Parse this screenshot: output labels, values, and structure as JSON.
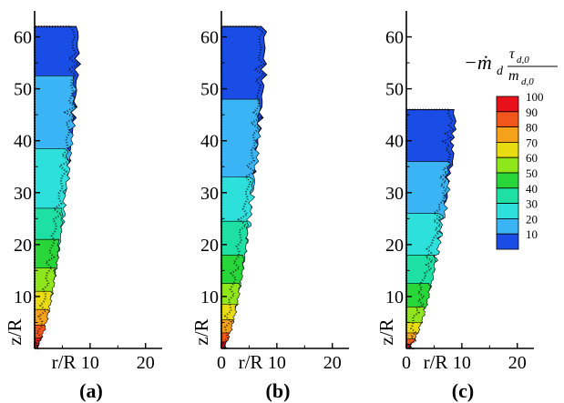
{
  "chart_data": {
    "type": "heatmap",
    "xlabel": "r/R",
    "ylabel": "z/R",
    "xlim": [
      0,
      23
    ],
    "ylim": [
      0,
      65
    ],
    "x_ticks": [
      0,
      10,
      20
    ],
    "y_ticks": [
      10,
      20,
      30,
      40,
      50,
      60
    ],
    "panels": [
      {
        "label": "(a)",
        "show_x0_tick": false,
        "contour_boundaries": [
          {
            "level": 10,
            "max_z": 62,
            "width_profile": [
              [
                0,
                1.5
              ],
              [
                5,
                4
              ],
              [
                15,
                5.5
              ],
              [
                30,
                7
              ],
              [
                45,
                8.5
              ],
              [
                55,
                7.5
              ],
              [
                62,
                6
              ]
            ]
          },
          {
            "level": 20,
            "max_z": 52.5
          },
          {
            "level": 30,
            "max_z": 38.5
          },
          {
            "level": 40,
            "max_z": 27
          },
          {
            "level": 50,
            "max_z": 21
          },
          {
            "level": 60,
            "max_z": 15.5
          },
          {
            "level": 70,
            "max_z": 11
          },
          {
            "level": 80,
            "max_z": 7.5
          },
          {
            "level": 90,
            "max_z": 4.5
          },
          {
            "level": 100,
            "max_z": 2
          }
        ]
      },
      {
        "label": "(b)",
        "show_x0_tick": true,
        "contour_boundaries": [
          {
            "level": 10,
            "max_z": 62
          },
          {
            "level": 20,
            "max_z": 48
          },
          {
            "level": 30,
            "max_z": 33
          },
          {
            "level": 40,
            "max_z": 24.5
          },
          {
            "level": 50,
            "max_z": 18
          },
          {
            "level": 60,
            "max_z": 12.5
          },
          {
            "level": 70,
            "max_z": 8.5
          },
          {
            "level": 80,
            "max_z": 5.5
          },
          {
            "level": 90,
            "max_z": 3
          },
          {
            "level": 100,
            "max_z": 1.2
          }
        ]
      },
      {
        "label": "(c)",
        "show_x0_tick": true,
        "contour_boundaries": [
          {
            "level": 10,
            "max_z": 46
          },
          {
            "level": 20,
            "max_z": 36
          },
          {
            "level": 30,
            "max_z": 26
          },
          {
            "level": 40,
            "max_z": 18
          },
          {
            "level": 50,
            "max_z": 12.5
          },
          {
            "level": 60,
            "max_z": 8
          },
          {
            "level": 70,
            "max_z": 5
          },
          {
            "level": 80,
            "max_z": 3
          },
          {
            "level": 90,
            "max_z": 1.8
          },
          {
            "level": 100,
            "max_z": 0.8
          }
        ]
      }
    ],
    "legend": {
      "title_main": "−ṁ",
      "title_sub": "d",
      "title_num": "τ",
      "title_num_sub": "d,0",
      "title_den": "m",
      "title_den_sub": "d,0",
      "levels": [
        100,
        90,
        80,
        70,
        60,
        50,
        40,
        30,
        20,
        10
      ],
      "colors": {
        "100": "#e8101a",
        "90": "#f2561a",
        "80": "#f5a21a",
        "70": "#e8dc10",
        "60": "#8fe61a",
        "50": "#29d63a",
        "40": "#1ee0a4",
        "30": "#2ee0dc",
        "20": "#3ab4f5",
        "10": "#1a4de6"
      }
    }
  }
}
